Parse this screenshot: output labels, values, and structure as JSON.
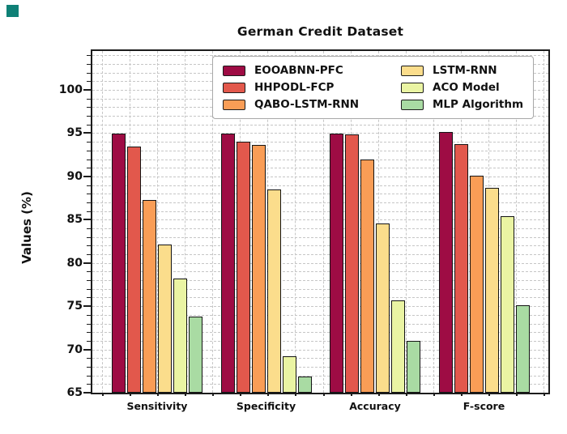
{
  "corner_marker": {
    "color": "#0F8076"
  },
  "chart_data": {
    "type": "bar",
    "title": "German Credit Dataset",
    "xlabel": "",
    "ylabel": "Values (%)",
    "categories": [
      "Sensitivity",
      "Specificity",
      "Accuracy",
      "F-score"
    ],
    "series": [
      {
        "name": "EOOABNN-PFC",
        "color": "#9E0C44",
        "values": [
          95.0,
          95.0,
          95.0,
          95.1
        ]
      },
      {
        "name": "HHPODL-FCP",
        "color": "#E2584C",
        "values": [
          93.5,
          94.0,
          94.9,
          93.7
        ]
      },
      {
        "name": "QABO-LSTM-RNN",
        "color": "#F99D56",
        "values": [
          87.3,
          93.6,
          92.0,
          90.1
        ]
      },
      {
        "name": "LSTM-RNN",
        "color": "#FBDD8C",
        "values": [
          82.1,
          88.5,
          84.6,
          88.7
        ]
      },
      {
        "name": "ACO Model",
        "color": "#EAF4A3",
        "values": [
          78.2,
          69.2,
          75.7,
          85.4
        ]
      },
      {
        "name": "MLP Algorithm",
        "color": "#A9DBA3",
        "values": [
          73.8,
          66.9,
          71.0,
          75.1
        ]
      }
    ],
    "ylim": [
      65,
      104.5
    ],
    "yticks": [
      65,
      70,
      75,
      80,
      85,
      90,
      95,
      100
    ],
    "minor_tick_unit": 1,
    "grid": true,
    "legend_position": "upper center inside plot, two columns"
  }
}
